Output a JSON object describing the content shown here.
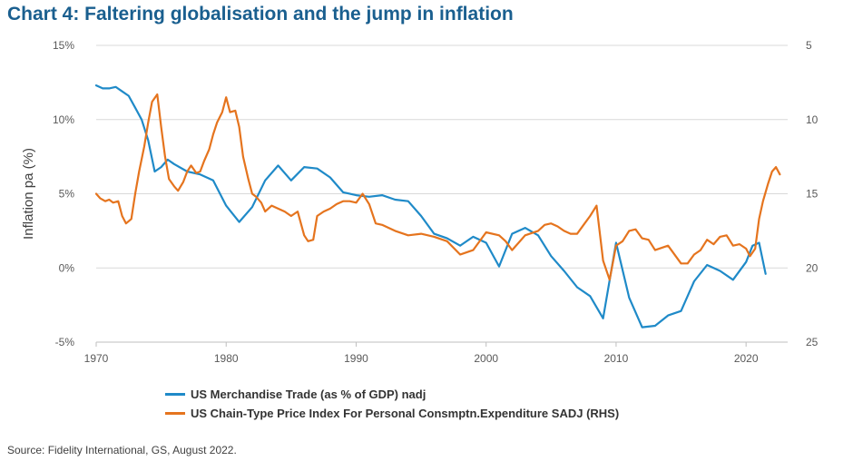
{
  "title": "Chart 4: Faltering globalisation and the jump in inflation",
  "source": "Source: Fidelity International, GS, August 2022.",
  "colors": {
    "trade": "#1f8ac8",
    "pce": "#e5741e",
    "grid": "#d9d9d9",
    "axis": "#bfbfbf"
  },
  "chart_data": {
    "type": "line",
    "title": "Chart 4: Faltering globalisation and the jump in inflation",
    "ylabel": "Inflation pa (%)",
    "xlim": [
      1970,
      2023.2
    ],
    "ylim_left": [
      -5,
      15
    ],
    "ylim_right": [
      25,
      5
    ],
    "right_axis_inverted": true,
    "x_ticks": [
      1970,
      1980,
      1990,
      2000,
      2010,
      2020
    ],
    "x_tick_labels": [
      "1970",
      "1980",
      "1990",
      "2000",
      "2010",
      "2020"
    ],
    "y_ticks_left": [
      15,
      10,
      5,
      0,
      -5
    ],
    "y_tick_labels_left": [
      "15%",
      "10%",
      "5%",
      "0%",
      "-5%"
    ],
    "y_ticks_right": [
      5,
      10,
      15,
      20,
      25
    ],
    "y_tick_labels_right": [
      "5",
      "10",
      "15",
      "20",
      "25"
    ],
    "grid": "horizontal",
    "legend_position": "bottom",
    "series": [
      {
        "name": "US Merchandise Trade (as % of GDP) nadj",
        "axis": "right",
        "x": [
          1970,
          1970.5,
          1971,
          1971.5,
          1972,
          1972.5,
          1973,
          1973.5,
          1974,
          1974.5,
          1975,
          1975.5,
          1976,
          1977,
          1978,
          1979,
          1980,
          1981,
          1982,
          1983,
          1984,
          1985,
          1986,
          1987,
          1988,
          1989,
          1990,
          1991,
          1992,
          1993,
          1994,
          1995,
          1996,
          1997,
          1998,
          1999,
          2000,
          2001,
          2002,
          2003,
          2004,
          2005,
          2006,
          2007,
          2008,
          2009,
          2010,
          2011,
          2012,
          2013,
          2014,
          2015,
          2016,
          2017,
          2018,
          2019,
          2020,
          2020.5,
          2021,
          2021.5
        ],
        "y": [
          7.7,
          7.9,
          7.9,
          7.8,
          8.1,
          8.4,
          9.2,
          10.0,
          11.4,
          13.5,
          13.2,
          12.7,
          13.0,
          13.5,
          13.7,
          14.1,
          15.8,
          16.9,
          15.9,
          14.1,
          13.1,
          14.1,
          13.2,
          13.3,
          13.9,
          14.9,
          15.1,
          15.2,
          15.1,
          15.4,
          15.5,
          16.5,
          17.7,
          18.0,
          18.5,
          17.9,
          18.3,
          19.9,
          17.7,
          17.3,
          17.8,
          19.2,
          20.2,
          21.3,
          21.9,
          23.4,
          18.3,
          22.0,
          24.0,
          23.9,
          23.2,
          22.9,
          20.9,
          19.8,
          20.2,
          20.8,
          19.6,
          18.5,
          18.3,
          20.4
        ]
      },
      {
        "name": "US Chain-Type Price Index For Personal Consmptn.Expenditure SADJ (RHS)",
        "axis": "left",
        "x": [
          1970,
          1970.3,
          1970.7,
          1971,
          1971.3,
          1971.7,
          1972,
          1972.3,
          1972.7,
          1973,
          1973.3,
          1973.7,
          1974,
          1974.3,
          1974.7,
          1975,
          1975.3,
          1975.6,
          1976,
          1976.3,
          1976.7,
          1977,
          1977.3,
          1977.7,
          1978,
          1978.3,
          1978.7,
          1979,
          1979.3,
          1979.7,
          1980,
          1980.3,
          1980.7,
          1981,
          1981.3,
          1981.7,
          1982,
          1982.3,
          1982.7,
          1983,
          1983.5,
          1984,
          1984.5,
          1985,
          1985.5,
          1986,
          1986.3,
          1986.7,
          1987,
          1987.5,
          1988,
          1988.5,
          1989,
          1989.5,
          1990,
          1990.5,
          1991,
          1991.5,
          1992,
          1993,
          1994,
          1995,
          1996,
          1997,
          1998,
          1999,
          2000,
          2001,
          2001.5,
          2002,
          2002.5,
          2003,
          2004,
          2004.5,
          2005,
          2005.5,
          2006,
          2006.5,
          2007,
          2007.5,
          2008,
          2008.5,
          2009,
          2009.5,
          2010,
          2010.5,
          2011,
          2011.5,
          2012,
          2012.5,
          2013,
          2014,
          2015,
          2015.5,
          2016,
          2016.5,
          2017,
          2017.5,
          2018,
          2018.5,
          2019,
          2019.5,
          2020,
          2020.3,
          2020.7,
          2021,
          2021.3,
          2021.7,
          2022,
          2022.3,
          2022.6
        ],
        "y": [
          5.0,
          4.7,
          4.5,
          4.6,
          4.4,
          4.5,
          3.5,
          3.0,
          3.3,
          5.0,
          6.5,
          8.2,
          9.8,
          11.2,
          11.7,
          9.5,
          7.5,
          6.0,
          5.5,
          5.2,
          5.8,
          6.5,
          6.9,
          6.4,
          6.5,
          7.2,
          8.0,
          9.0,
          9.8,
          10.5,
          11.5,
          10.5,
          10.6,
          9.5,
          7.5,
          6.0,
          5.0,
          4.8,
          4.4,
          3.8,
          4.2,
          4.0,
          3.8,
          3.5,
          3.8,
          2.2,
          1.8,
          1.9,
          3.5,
          3.8,
          4.0,
          4.3,
          4.5,
          4.5,
          4.4,
          5.0,
          4.3,
          3.0,
          2.9,
          2.5,
          2.2,
          2.3,
          2.1,
          1.8,
          0.9,
          1.2,
          2.4,
          2.2,
          1.8,
          1.2,
          1.7,
          2.2,
          2.5,
          2.9,
          3.0,
          2.8,
          2.5,
          2.3,
          2.3,
          2.9,
          3.5,
          4.2,
          0.5,
          -0.8,
          1.5,
          1.8,
          2.5,
          2.6,
          2.0,
          1.9,
          1.2,
          1.5,
          0.3,
          0.3,
          0.9,
          1.2,
          1.9,
          1.6,
          2.1,
          2.2,
          1.5,
          1.6,
          1.3,
          0.8,
          1.3,
          3.3,
          4.5,
          5.7,
          6.5,
          6.8,
          6.3
        ]
      }
    ]
  }
}
